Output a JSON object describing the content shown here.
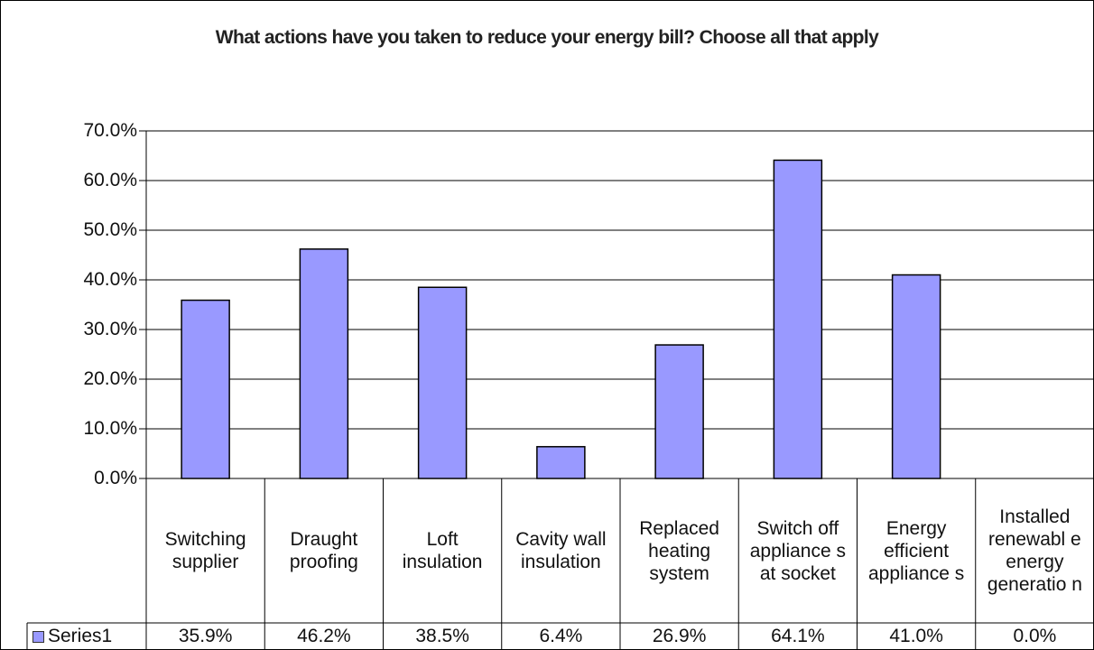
{
  "chart_data": {
    "type": "bar",
    "title": "What actions have you taken to reduce your energy bill?  Choose all that apply",
    "categories": [
      "Switching supplier",
      "Draught proofing",
      "Loft insulation",
      "Cavity wall insulation",
      "Replaced heating system",
      "Switch off appliance s at socket",
      "Energy efficient appliance s",
      "Installed renewabl e energy generatio n"
    ],
    "series": [
      {
        "name": "Series1",
        "values": [
          35.9,
          46.2,
          38.5,
          6.4,
          26.9,
          64.1,
          41.0,
          0.0
        ],
        "labels": [
          "35.9%",
          "46.2%",
          "38.5%",
          "6.4%",
          "26.9%",
          "64.1%",
          "41.0%",
          "0.0%"
        ]
      }
    ],
    "yticks": [
      "0.0%",
      "10.0%",
      "20.0%",
      "30.0%",
      "40.0%",
      "50.0%",
      "60.0%",
      "70.0%"
    ],
    "ylim": [
      0,
      70
    ],
    "grid": true,
    "data_table": true,
    "bar_color": "#9999ff",
    "bar_border_color": "#000000"
  }
}
